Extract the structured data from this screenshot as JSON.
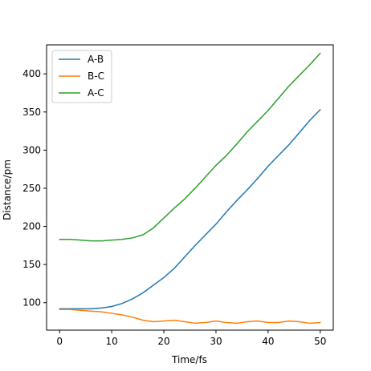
{
  "chart_data": {
    "type": "line",
    "title": "",
    "xlabel": "Time/fs",
    "ylabel": "Distance/pm",
    "xlim": [
      -2.5,
      52.5
    ],
    "ylim": [
      64,
      438
    ],
    "xticks": [
      0,
      10,
      20,
      30,
      40,
      50
    ],
    "yticks": [
      100,
      150,
      200,
      250,
      300,
      350,
      400
    ],
    "grid": false,
    "legend_position": "upper-left",
    "series": [
      {
        "name": "A-B",
        "color": "#1f77b4",
        "x": [
          0,
          2,
          4,
          6,
          8,
          10,
          12,
          14,
          16,
          18,
          20,
          22,
          24,
          26,
          28,
          30,
          32,
          34,
          36,
          38,
          40,
          42,
          44,
          46,
          48,
          50
        ],
        "y": [
          92,
          92,
          92,
          92,
          93,
          95,
          99,
          105,
          113,
          123,
          133,
          145,
          160,
          175,
          189,
          203,
          219,
          234,
          248,
          263,
          279,
          293,
          307,
          323,
          339,
          353
        ]
      },
      {
        "name": "B-C",
        "color": "#ff7f0e",
        "x": [
          0,
          2,
          4,
          6,
          8,
          10,
          12,
          14,
          16,
          18,
          20,
          22,
          24,
          26,
          28,
          30,
          32,
          34,
          36,
          38,
          40,
          42,
          44,
          46,
          48,
          50
        ],
        "y": [
          91,
          91,
          90,
          89,
          88,
          86,
          84,
          81,
          77,
          75,
          76,
          77,
          75,
          73,
          74,
          76,
          74,
          73,
          75,
          76,
          74,
          74,
          76,
          75,
          73,
          74
        ]
      },
      {
        "name": "A-C",
        "color": "#2ca02c",
        "x": [
          0,
          2,
          4,
          6,
          8,
          10,
          12,
          14,
          16,
          18,
          20,
          22,
          24,
          26,
          28,
          30,
          32,
          34,
          36,
          38,
          40,
          42,
          44,
          46,
          48,
          50
        ],
        "y": [
          183,
          183,
          182,
          181,
          181,
          182,
          183,
          185,
          189,
          198,
          211,
          224,
          236,
          250,
          265,
          280,
          293,
          308,
          324,
          338,
          352,
          368,
          384,
          398,
          412,
          427
        ]
      }
    ]
  }
}
